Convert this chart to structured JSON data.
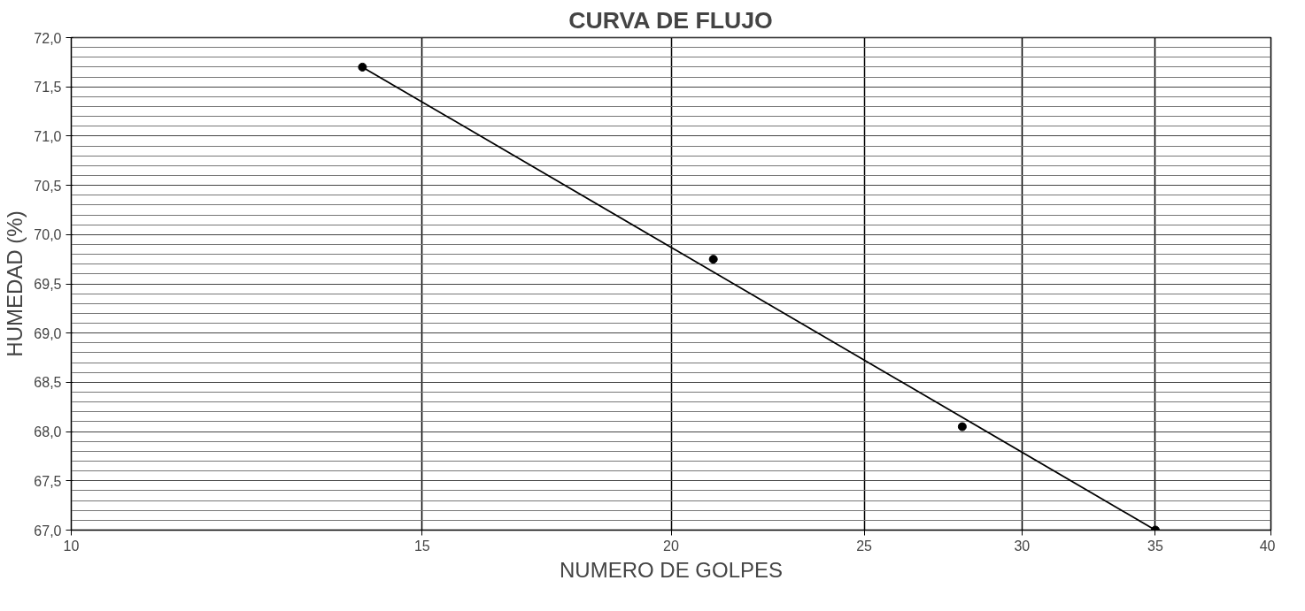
{
  "chart_data": {
    "type": "scatter",
    "title": "CURVA DE FLUJO",
    "xlabel": "NUMERO DE GOLPES",
    "ylabel": "HUMEDAD (%)",
    "log": "x",
    "x": [
      14,
      21,
      28,
      35
    ],
    "values": [
      71.7,
      69.75,
      68.05,
      67.0
    ],
    "color": "#000000",
    "marker": "circle",
    "series": [
      {
        "type": "line",
        "x": [
          14,
          35
        ],
        "values": [
          71.7,
          67.0
        ],
        "color": "#000000",
        "marker": "none"
      }
    ],
    "xlim": [
      10,
      40
    ],
    "xticks": [
      10,
      15,
      20,
      25,
      30,
      35,
      40
    ],
    "ylim": [
      67.0,
      72.0
    ],
    "yticks": [
      {
        "value": 67.0,
        "label": "67,0"
      },
      {
        "value": 67.5,
        "label": "67,5"
      },
      {
        "value": 68.0,
        "label": "68,0"
      },
      {
        "value": 68.5,
        "label": "68,5"
      },
      {
        "value": 69.0,
        "label": "69,0"
      },
      {
        "value": 69.5,
        "label": "69,5"
      },
      {
        "value": 70.0,
        "label": "70,0"
      },
      {
        "value": 70.5,
        "label": "70,5"
      },
      {
        "value": 71.0,
        "label": "71,0"
      },
      {
        "value": 71.5,
        "label": "71,5"
      },
      {
        "value": 72.0,
        "label": "72,0"
      }
    ],
    "grid": true
  }
}
